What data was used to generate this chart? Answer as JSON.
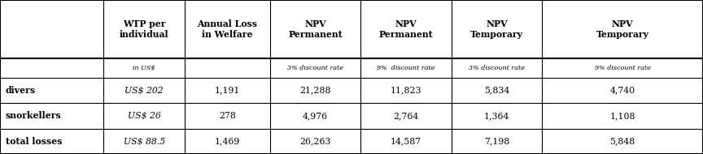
{
  "col_headers_line1": [
    "",
    "WTP per\nindividual",
    "Annual Loss\nin Welfare",
    "NPV\nPermanent",
    "NPV\nPermanent",
    "NPV\nTemporary",
    "NPV\nTemporary"
  ],
  "col_headers_line2": [
    "",
    "in US$",
    "",
    "3% discount rate",
    "9%  discount rate",
    "3% discount rate",
    "9% discount rate"
  ],
  "rows": [
    [
      "divers",
      "US$ 202",
      "1,191",
      "21,288",
      "11,823",
      "5,834",
      "4,740"
    ],
    [
      "snorkellers",
      "US$ 26",
      "278",
      "4,976",
      "2,764",
      "1,364",
      "1,108"
    ],
    [
      "total losses",
      "US$ 88.5",
      "1,469",
      "26,263",
      "14,587",
      "7,198",
      "5,848"
    ]
  ],
  "col_boundaries": [
    0.0,
    0.147,
    0.263,
    0.384,
    0.513,
    0.642,
    0.771,
    1.0
  ],
  "background_color": "#ffffff",
  "border_color": "#000000",
  "text_color": "#000000",
  "row_tops": [
    1.0,
    0.62,
    0.495,
    0.33,
    0.165,
    0.0
  ]
}
